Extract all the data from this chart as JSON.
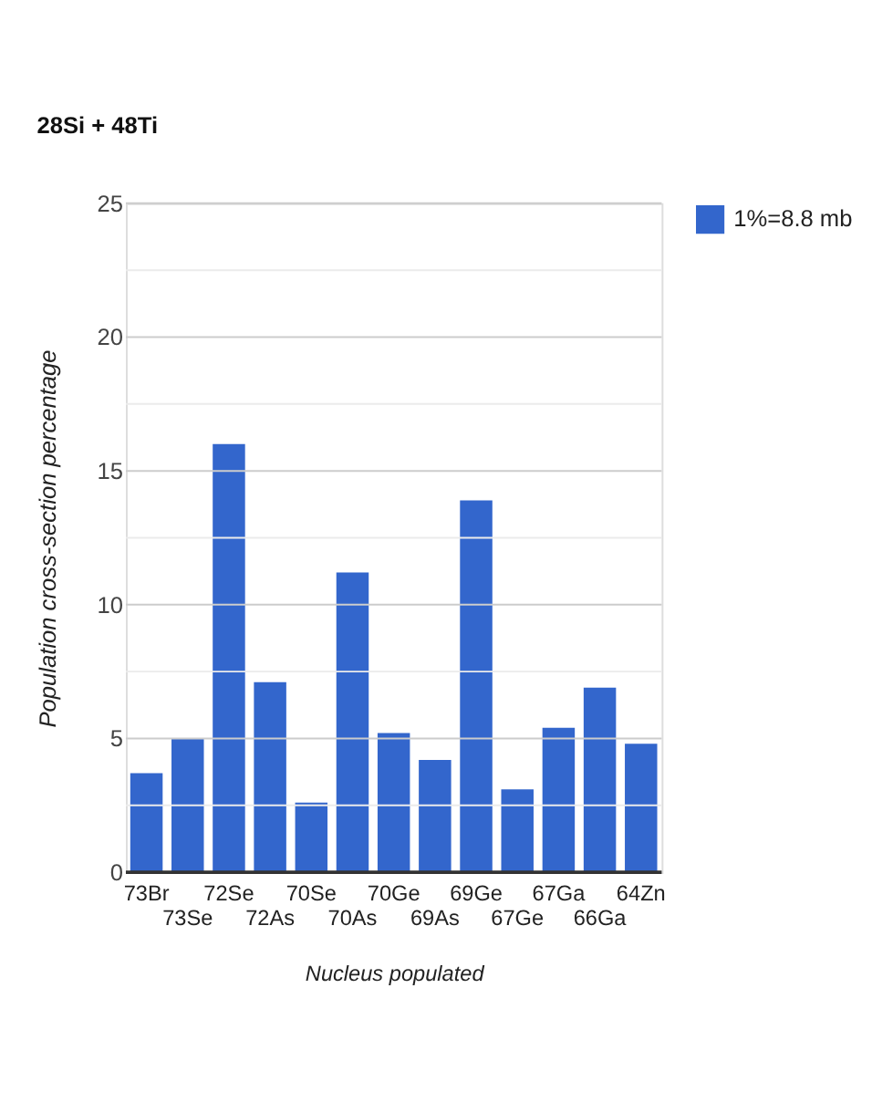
{
  "chart_data": {
    "type": "bar",
    "title": "28Si + 48Ti",
    "xlabel": "Nucleus populated",
    "ylabel": "Population cross-section percentage",
    "categories": [
      "73Br",
      "73Se",
      "72Se",
      "72As",
      "70Se",
      "70As",
      "70Ge",
      "69As",
      "69Ge",
      "67Ge",
      "67Ga",
      "66Ga",
      "64Zn"
    ],
    "series": [
      {
        "name": "1%=8.8 mb",
        "color": "#3366cc",
        "values": [
          3.7,
          5.0,
          16.0,
          7.1,
          2.6,
          11.2,
          5.2,
          4.2,
          13.9,
          3.1,
          5.4,
          6.9,
          4.8
        ]
      }
    ],
    "ylim": [
      0,
      25
    ],
    "yticks": [
      0,
      {
        "value": 2.5,
        "label": null
      },
      5,
      {
        "value": 7.5,
        "label": null
      },
      10,
      {
        "value": 12.5,
        "label": null
      },
      15,
      {
        "value": 17.5,
        "label": null
      },
      20,
      {
        "value": 22.5,
        "label": null
      },
      25
    ],
    "grid": "y",
    "legend": "top right"
  }
}
